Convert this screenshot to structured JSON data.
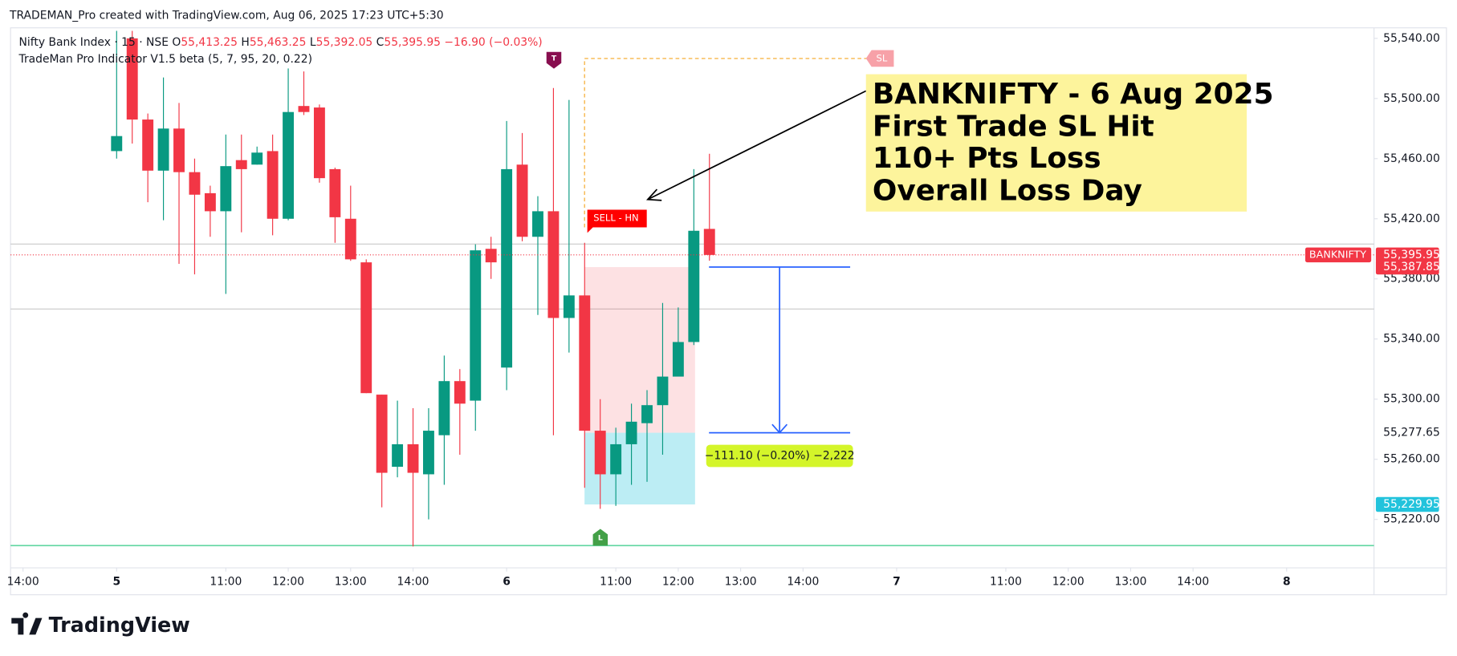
{
  "header": "TRADEMAN_Pro created with TradingView.com, Aug 06, 2025 17:23 UTC+5:30",
  "footer_logo": "TradingView",
  "chart_data": {
    "type": "candlestick",
    "title": "Nifty Bank Index · 15 · NSE",
    "ohlc_legend": [
      {
        "key": "O",
        "value": "55,413.25"
      },
      {
        "key": "H",
        "value": "55,463.25"
      },
      {
        "key": "L",
        "value": "55,392.05"
      },
      {
        "key": "C",
        "value": "55,395.95"
      }
    ],
    "change": "−16.90 (−0.03%)",
    "indicator": "TradeMan Pro Indicator V1.5 beta (5, 7, 95, 20, 0.22)",
    "up_color": "#089981",
    "down_color": "#f23645",
    "x": [
      0,
      1,
      2,
      3,
      4,
      5,
      6,
      7,
      8,
      9,
      10,
      11,
      12,
      13,
      14,
      15,
      16,
      17,
      18,
      19,
      20,
      21,
      22,
      23,
      24,
      25,
      26,
      27,
      28,
      29,
      30,
      31,
      32,
      33,
      34,
      35,
      36,
      37,
      38
    ],
    "open": [
      55465,
      55540,
      55486,
      55452,
      55480,
      55451,
      55437,
      55425,
      55459,
      55456,
      55465,
      55420,
      55495,
      55494,
      55453,
      55420,
      55391,
      55303,
      55255,
      55270,
      55250,
      55276,
      55312,
      55299,
      55400,
      55321,
      55456,
      55408,
      55425,
      55354,
      55369,
      55279,
      55250,
      55270,
      55284,
      55296,
      55315,
      55338,
      55413.25
    ],
    "high": [
      55545,
      55545,
      55490,
      55514,
      55497,
      55460,
      55442,
      55476,
      55476,
      55468,
      55476,
      55520,
      55518,
      55496,
      55454,
      55442,
      55393,
      55303,
      55299,
      55294,
      55294,
      55329,
      55320,
      55403,
      55408,
      55485,
      55477,
      55435,
      55507,
      55499,
      55404,
      55300,
      55281,
      55297,
      55306,
      55364,
      55361,
      55453,
      55463.25
    ],
    "low": [
      55460,
      55470,
      55431,
      55419,
      55390,
      55383,
      55408,
      55370,
      55411,
      55456,
      55409,
      55419,
      55489,
      55444,
      55404,
      55392,
      55304,
      55228,
      55248,
      55202,
      55220,
      55243,
      55263,
      55279,
      55380,
      55306,
      55405,
      55356,
      55276,
      55331,
      55241,
      55227,
      55229,
      55243,
      55245,
      55263,
      55316,
      55336,
      55392.05
    ],
    "close": [
      55475,
      55486,
      55452,
      55480,
      55451,
      55436,
      55425,
      55455,
      55453,
      55464,
      55420,
      55491,
      55491,
      55447,
      55421,
      55393,
      55304,
      55251,
      55270,
      55251,
      55279,
      55312,
      55297,
      55399,
      55391,
      55453,
      55408,
      55425,
      55354,
      55369,
      55279,
      55250,
      55270,
      55285,
      55296,
      55315,
      55338,
      55412,
      55395.95
    ],
    "xlim": [
      -6.8,
      80.6
    ],
    "xticks": [
      {
        "value": -6,
        "label": "14:00"
      },
      {
        "value": 0,
        "label": "5"
      },
      {
        "value": 7,
        "label": "11:00"
      },
      {
        "value": 11,
        "label": "12:00"
      },
      {
        "value": 15,
        "label": "13:00"
      },
      {
        "value": 19,
        "label": "14:00"
      },
      {
        "value": 25,
        "label": "6"
      },
      {
        "value": 32,
        "label": "11:00"
      },
      {
        "value": 36,
        "label": "12:00"
      },
      {
        "value": 40,
        "label": "13:00"
      },
      {
        "value": 44,
        "label": "14:00"
      },
      {
        "value": 50,
        "label": "7"
      },
      {
        "value": 57,
        "label": "11:00"
      },
      {
        "value": 61,
        "label": "12:00"
      },
      {
        "value": 65,
        "label": "13:00"
      },
      {
        "value": 69,
        "label": "14:00"
      },
      {
        "value": 75,
        "label": "8"
      }
    ],
    "ylim": [
      55189,
      55547
    ],
    "yticks": [
      {
        "value": 55220,
        "label": "55,220.00"
      },
      {
        "value": 55260,
        "label": "55,260.00"
      },
      {
        "value": 55300,
        "label": "55,300.00"
      },
      {
        "value": 55340,
        "label": "55,340.00"
      },
      {
        "value": 55380,
        "label": "55,380.00"
      },
      {
        "value": 55420,
        "label": "55,420.00"
      },
      {
        "value": 55460,
        "label": "55,460.00"
      },
      {
        "value": 55500,
        "label": "55,500.00"
      },
      {
        "value": 55540,
        "label": "55,540.00"
      }
    ],
    "price_labels": [
      {
        "value": 55395.95,
        "label": "55,395.95",
        "tag": "BANKNIFTY",
        "color": "#f23645"
      },
      {
        "value": 55387.85,
        "label": "55,387.85",
        "color": "#f23645"
      },
      {
        "value": 55229.95,
        "label": "55,229.95",
        "color": "#22c3dc"
      },
      {
        "value": 55277.65,
        "label": "55,277.65"
      }
    ],
    "measure_label": "−111.10 (−0.20%) −2,222",
    "markers": {
      "sell": "SELL - HN",
      "sl": "SL",
      "target": "T",
      "low": "L"
    },
    "annotation": [
      "BANKNIFTY - 6 Aug 2025",
      "First Trade SL Hit",
      "110+ Pts Loss",
      "Overall Loss Day"
    ]
  }
}
